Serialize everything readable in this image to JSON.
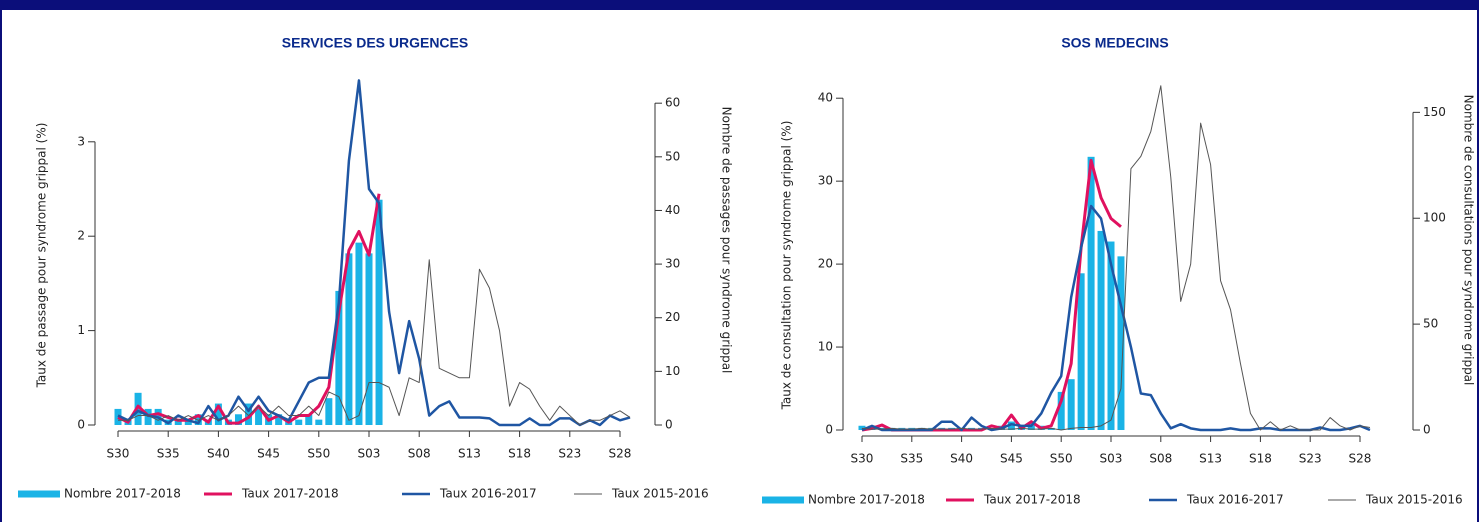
{
  "chart_data": [
    {
      "type": "combo",
      "title": "SERVICES DES URGENCES",
      "y_label": "Taux de passage pour syndrome grippal (%)",
      "y2_label": "Nombre de passages pour syndrome grippal",
      "categories": [
        "S30",
        null,
        null,
        null,
        null,
        "S35",
        null,
        null,
        null,
        null,
        "S40",
        null,
        null,
        null,
        null,
        "S45",
        null,
        null,
        null,
        null,
        "S50",
        null,
        null,
        null,
        null,
        "S03",
        null,
        null,
        null,
        null,
        "S08",
        null,
        null,
        null,
        null,
        "S13",
        null,
        null,
        null,
        null,
        "S18",
        null,
        null,
        null,
        null,
        "S23",
        null,
        null,
        null,
        null,
        "S28",
        null
      ],
      "ylim": [
        0,
        3.75
      ],
      "yticks": [
        0,
        1,
        2,
        3
      ],
      "y2lim": [
        0,
        66
      ],
      "y2ticks": [
        0,
        10,
        20,
        30,
        40,
        50,
        60
      ],
      "series": [
        {
          "name": "Nombre 2017-2018",
          "type": "bar",
          "axis": "y2",
          "color": "#1ab3e6",
          "values": [
            3,
            1,
            6,
            3,
            3,
            1,
            1,
            1,
            2,
            1,
            4,
            1,
            2,
            4,
            3,
            2,
            2,
            1,
            1,
            2,
            1,
            5,
            25,
            32,
            34,
            32,
            42,
            null,
            null,
            null,
            null,
            null,
            null,
            null,
            null,
            null,
            null,
            null,
            null,
            null,
            null,
            null,
            null,
            null,
            null,
            null,
            null,
            null,
            null,
            null,
            null,
            null
          ]
        },
        {
          "name": "Taux 2017-2018",
          "type": "line",
          "color": "#e0115f",
          "values": [
            0.08,
            0.03,
            0.2,
            0.1,
            0.12,
            0.08,
            0.05,
            0.05,
            0.1,
            0.03,
            0.2,
            0.02,
            0.02,
            0.08,
            0.2,
            0.05,
            0.1,
            0.03,
            0.1,
            0.1,
            0.2,
            0.4,
            1.2,
            1.85,
            2.05,
            1.8,
            2.45,
            null,
            null,
            null,
            null,
            null,
            null,
            null,
            null,
            null,
            null,
            null,
            null,
            null,
            null,
            null,
            null,
            null,
            null,
            null,
            null,
            null,
            null,
            null,
            null,
            null
          ]
        },
        {
          "name": "Taux 2016-2017",
          "type": "line",
          "color": "#1f56a3",
          "values": [
            0.1,
            0.05,
            0.15,
            0.1,
            0.08,
            0.02,
            0.1,
            0.05,
            0.02,
            0.2,
            0.05,
            0.1,
            0.3,
            0.15,
            0.3,
            0.15,
            0.1,
            0.05,
            0.25,
            0.45,
            0.5,
            0.5,
            1.3,
            2.8,
            3.65,
            2.5,
            2.35,
            1.2,
            0.55,
            1.1,
            0.7,
            0.1,
            0.2,
            0.25,
            0.08,
            0.08,
            0.08,
            0.07,
            0,
            0,
            0,
            0.07,
            0,
            0,
            0.07,
            0.07,
            0,
            0.05,
            0,
            0.1,
            0.05,
            0.08
          ]
        },
        {
          "name": "Taux 2015-2016",
          "type": "line",
          "color": "#555555",
          "values": [
            0.05,
            0.05,
            0.1,
            0.1,
            0.05,
            0.1,
            0.05,
            0.1,
            0.05,
            0.1,
            0.05,
            0.1,
            0.2,
            0.1,
            0.2,
            0.1,
            0.2,
            0.1,
            0.1,
            0.2,
            0.1,
            0.35,
            0.3,
            0.05,
            0.1,
            0.45,
            0.45,
            0.4,
            0.1,
            0.5,
            0.45,
            1.75,
            0.6,
            0.55,
            0.5,
            0.5,
            1.65,
            1.45,
            1.0,
            0.2,
            0.45,
            0.38,
            0.2,
            0.05,
            0.2,
            0.1,
            0,
            0.05,
            0.05,
            0.1,
            0.15,
            0.08
          ]
        }
      ]
    },
    {
      "type": "combo",
      "title": "SOS MEDECINS",
      "y_label": "Taux de consultation pour syndrome grippal (%)",
      "y2_label": "Nombre de consultations pour syndrome grippal",
      "categories": [
        "S30",
        null,
        null,
        null,
        null,
        "S35",
        null,
        null,
        null,
        null,
        "S40",
        null,
        null,
        null,
        null,
        "S45",
        null,
        null,
        null,
        null,
        "S50",
        null,
        null,
        null,
        null,
        "S03",
        null,
        null,
        null,
        null,
        "S08",
        null,
        null,
        null,
        null,
        "S13",
        null,
        null,
        null,
        null,
        "S18",
        null,
        null,
        null,
        null,
        "S23",
        null,
        null,
        null,
        null,
        "S28",
        null
      ],
      "ylim": [
        0,
        43.4
      ],
      "yticks": [
        0,
        10,
        20,
        30,
        40
      ],
      "y2lim": [
        0,
        170
      ],
      "y2ticks": [
        0,
        50,
        100,
        150
      ],
      "series": [
        {
          "name": "Nombre 2017-2018",
          "type": "bar",
          "axis": "y2",
          "color": "#1ab3e6",
          "values": [
            2,
            2,
            1,
            1,
            1,
            1,
            1,
            1,
            1,
            1,
            1,
            1,
            1,
            0,
            2,
            4,
            2,
            3,
            2,
            1,
            18,
            24,
            74,
            129,
            94,
            89,
            82,
            null,
            null,
            null,
            null,
            null,
            null,
            null,
            null,
            null,
            null,
            null,
            null,
            null,
            null,
            null,
            null,
            null,
            null,
            null,
            null,
            null,
            null,
            null,
            null,
            null
          ]
        },
        {
          "name": "Taux 2017-2018",
          "type": "line",
          "color": "#e0115f",
          "values": [
            0,
            0.2,
            0.6,
            0,
            0,
            0,
            0,
            0,
            0,
            0,
            0,
            0,
            0,
            0.5,
            0.2,
            1.8,
            0.2,
            1,
            0.2,
            0.5,
            3.5,
            8,
            22,
            32.5,
            28,
            25.5,
            24.5,
            null,
            null,
            null,
            null,
            null,
            null,
            null,
            null,
            null,
            null,
            null,
            null,
            null,
            null,
            null,
            null,
            null,
            null,
            null,
            null,
            null,
            null,
            null,
            null,
            null
          ]
        },
        {
          "name": "Taux 2016-2017",
          "type": "line",
          "color": "#1f56a3",
          "values": [
            0,
            0.5,
            0,
            0,
            0,
            0,
            0,
            0,
            1,
            1,
            0,
            1.5,
            0.5,
            0,
            0.2,
            0.7,
            0.5,
            0.5,
            2,
            4.5,
            6.5,
            16,
            22,
            27,
            25.5,
            20,
            15,
            10,
            4.4,
            4.2,
            2,
            0.2,
            0.7,
            0.2,
            0,
            0,
            0,
            0.2,
            0,
            0,
            0.2,
            0.2,
            0,
            0,
            0,
            0,
            0.3,
            0,
            0,
            0.2,
            0.5,
            0
          ]
        },
        {
          "name": "Taux 2015-2016",
          "type": "line",
          "color": "#555555",
          "values": [
            0.2,
            0.1,
            0.1,
            0.2,
            0.1,
            0.1,
            0.2,
            0.1,
            0.1,
            0.1,
            0.2,
            0.1,
            0.1,
            0.2,
            0.1,
            0.1,
            0.2,
            0.1,
            0.1,
            0.2,
            0,
            0.2,
            0.3,
            0.3,
            0.5,
            1.2,
            5,
            31.5,
            33,
            36,
            41.5,
            30.5,
            15.5,
            20,
            37,
            32,
            18,
            14.5,
            8,
            2,
            0,
            1,
            0,
            0.5,
            0,
            0,
            0,
            1.5,
            0.5,
            0,
            0.5,
            0.3
          ]
        }
      ]
    }
  ]
}
